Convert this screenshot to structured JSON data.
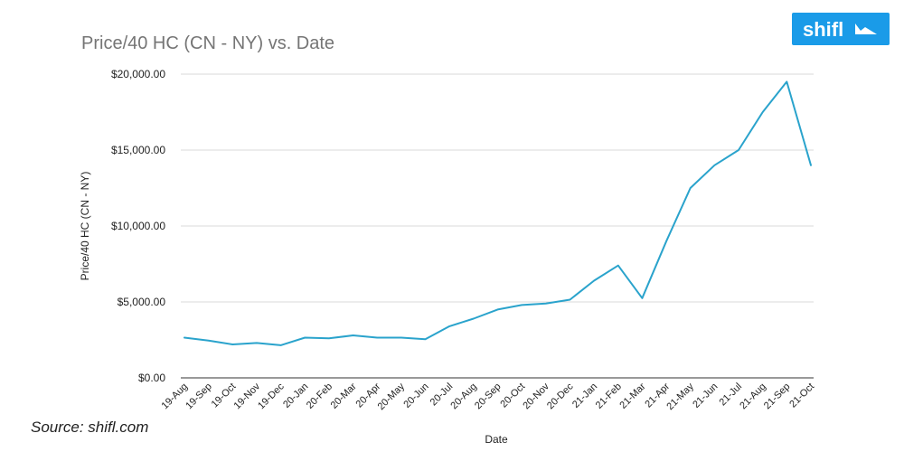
{
  "brand": {
    "name": "shifl",
    "color": "#1a9be8"
  },
  "source_note": "Source: shifl.com",
  "chart_data": {
    "type": "line",
    "title": "Price/40 HC (CN - NY) vs. Date",
    "xlabel": "Date",
    "ylabel": "Price/40 HC (CN - NY)",
    "ylim": [
      0,
      20000
    ],
    "yticks": [
      0,
      5000,
      10000,
      15000,
      20000
    ],
    "ytick_labels": [
      "$0.00",
      "$5,000.00",
      "$10,000.00",
      "$15,000.00",
      "$20,000.00"
    ],
    "grid": true,
    "legend": "none",
    "line_color": "#2aa3cc",
    "categories": [
      "19-Aug",
      "19-Sep",
      "19-Oct",
      "19-Nov",
      "19-Dec",
      "20-Jan",
      "20-Feb",
      "20-Mar",
      "20-Apr",
      "20-May",
      "20-Jun",
      "20-Jul",
      "20-Aug",
      "20-Sep",
      "20-Oct",
      "20-Nov",
      "20-Dec",
      "21-Jan",
      "21-Feb",
      "21-Mar",
      "21-Apr",
      "21-May",
      "21-Jun",
      "21-Jul",
      "21-Aug",
      "21-Sep",
      "21-Oct"
    ],
    "series": [
      {
        "name": "Price/40 HC (CN - NY)",
        "values": [
          2650,
          2450,
          2200,
          2300,
          2150,
          2650,
          2600,
          2800,
          2650,
          2650,
          2550,
          3400,
          3900,
          4500,
          4800,
          4900,
          5150,
          6400,
          7400,
          5250,
          9000,
          12500,
          14000,
          15000,
          17500,
          19500,
          14000
        ]
      }
    ]
  }
}
